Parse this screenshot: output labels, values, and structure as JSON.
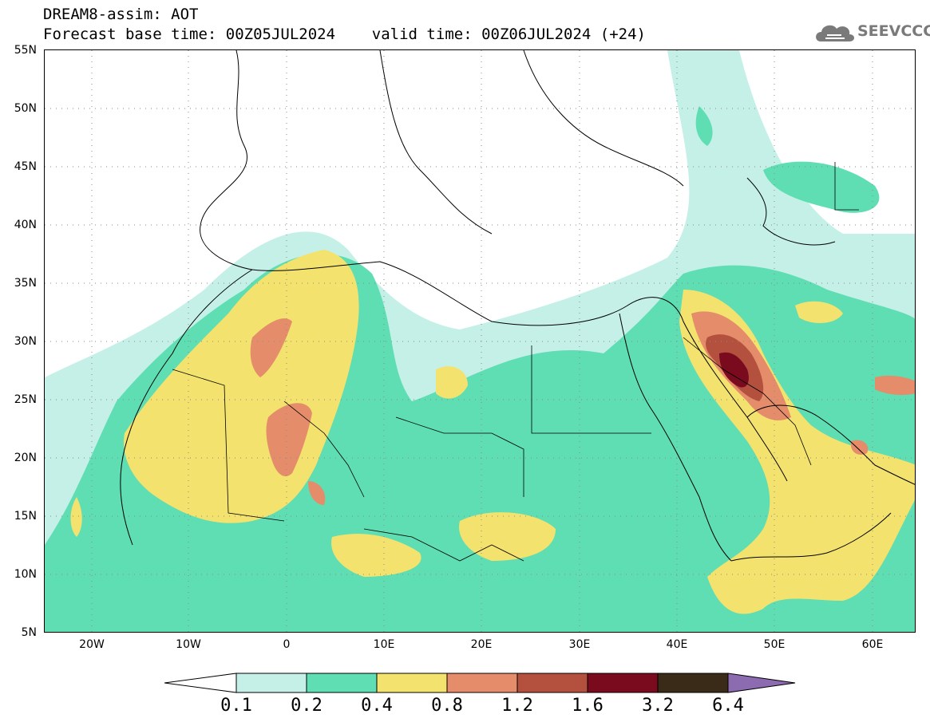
{
  "header": {
    "title_line1": "DREAM8-assim: AOT",
    "title_line2": "Forecast base time: 00Z05JUL2024    valid time: 00Z06JUL2024 (+24)"
  },
  "logo": {
    "text": "SEEVCCC",
    "icon": "cloud-icon"
  },
  "map": {
    "lat_labels": [
      "55N",
      "50N",
      "45N",
      "40N",
      "35N",
      "30N",
      "25N",
      "20N",
      "15N",
      "10N",
      "5N"
    ],
    "lon_labels": [
      "20W",
      "10W",
      "0",
      "10E",
      "20E",
      "30E",
      "40E",
      "50E",
      "60E"
    ]
  },
  "colorbar": {
    "labels": [
      "0.1",
      "0.2",
      "0.4",
      "0.8",
      "1.2",
      "1.6",
      "3.2",
      "6.4"
    ],
    "colors": [
      "#c4f0e8",
      "#5fddb3",
      "#f4e26e",
      "#e58c6b",
      "#b3503e",
      "#7a0a1e",
      "#3a2a18",
      "#8c6bb0"
    ]
  }
}
